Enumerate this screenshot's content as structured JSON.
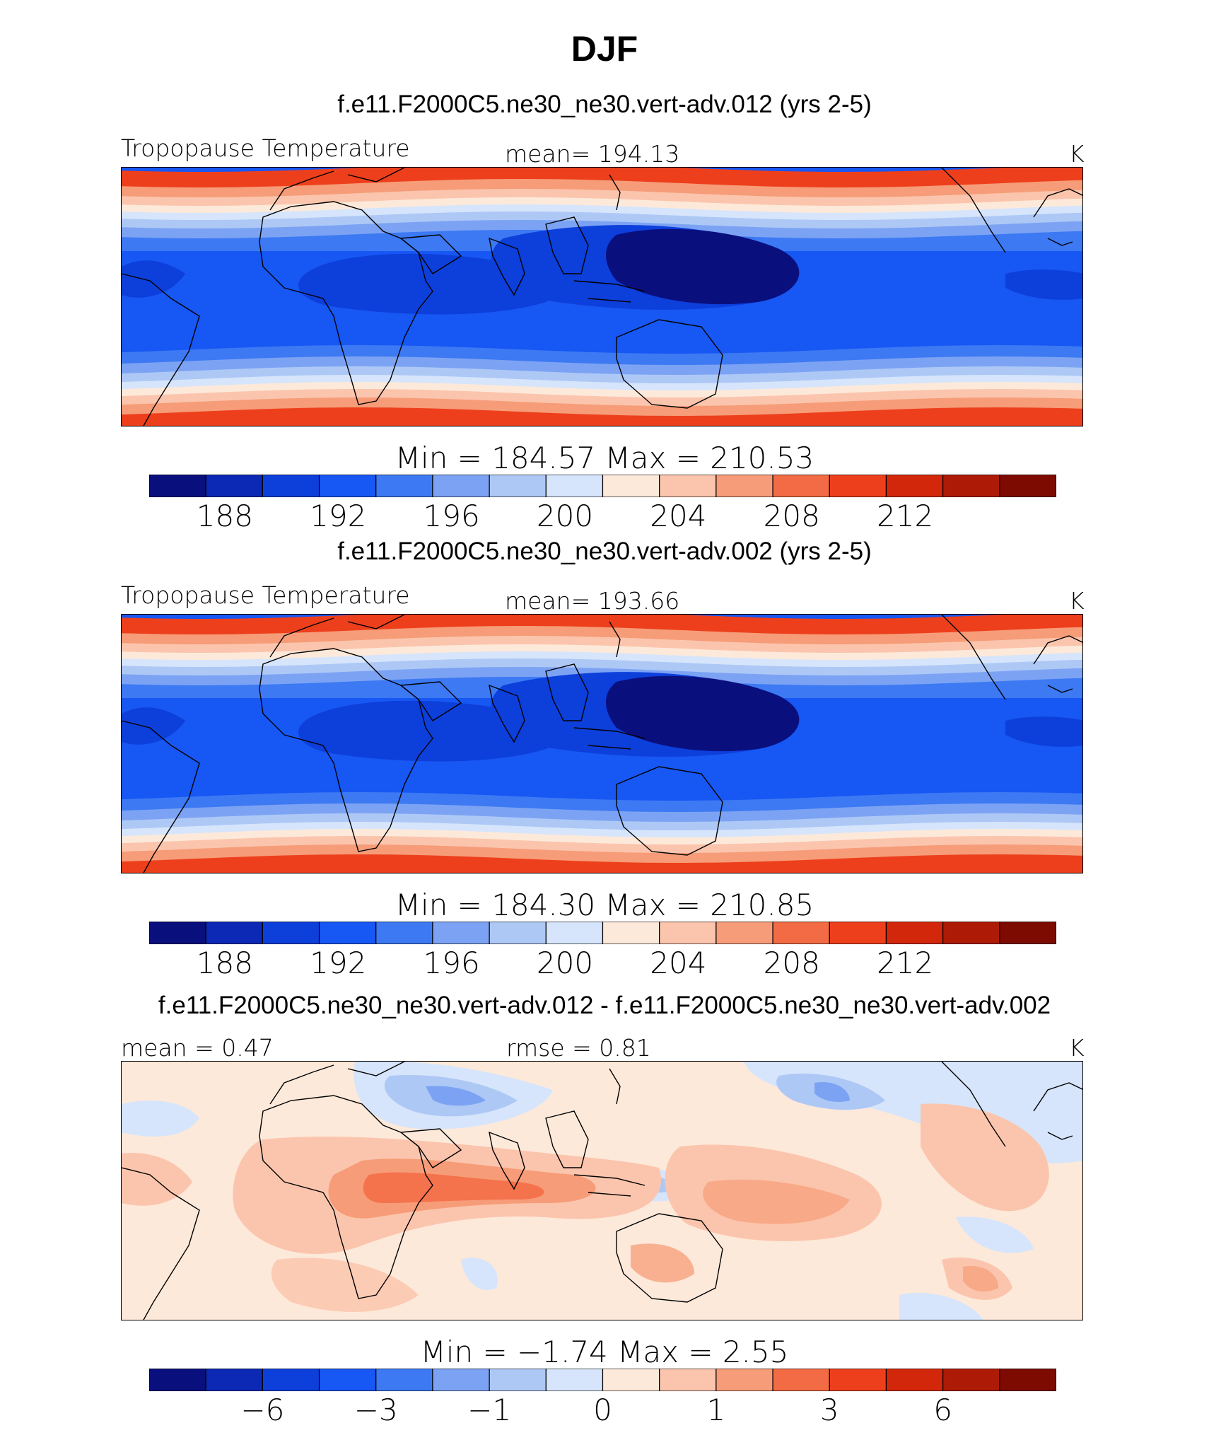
{
  "figure": {
    "season_title": "DJF",
    "units": "K"
  },
  "palette": [
    "#0a0f7e",
    "#0b29b4",
    "#0d3fdb",
    "#1757f3",
    "#3c79f3",
    "#7ca3f3",
    "#aec8f6",
    "#d6e5fb",
    "#fde9da",
    "#fbc5ad",
    "#f69c78",
    "#f36b44",
    "#ed3f1c",
    "#d3270b",
    "#ad1a06",
    "#7d0b02"
  ],
  "chart_data": [
    {
      "type": "heatmap",
      "panel": "top",
      "title": "f.e11.F2000C5.ne30_ne30.vert-adv.012 (yrs 2-5)",
      "field_label": "Tropopause Temperature",
      "mean_label": "mean=  194.13",
      "units": "K",
      "min_max_label": "Min  =  184.57  Max  =  210.53",
      "colorbar_levels": [
        186,
        188,
        190,
        192,
        194,
        196,
        198,
        200,
        202,
        204,
        206,
        208,
        210,
        212,
        214
      ],
      "colorbar_tick_labels": [
        "188",
        "192",
        "196",
        "200",
        "204",
        "208",
        "212"
      ],
      "colorbar_tick_levels": [
        188,
        192,
        196,
        200,
        204,
        208,
        212
      ],
      "min": 184.57,
      "max": 210.53,
      "mean": 194.13
    },
    {
      "type": "heatmap",
      "panel": "middle",
      "title": "f.e11.F2000C5.ne30_ne30.vert-adv.002 (yrs 2-5)",
      "field_label": "Tropopause Temperature",
      "mean_label": "mean=  193.66",
      "units": "K",
      "min_max_label": "Min  =  184.30  Max  =  210.85",
      "colorbar_levels": [
        186,
        188,
        190,
        192,
        194,
        196,
        198,
        200,
        202,
        204,
        206,
        208,
        210,
        212,
        214
      ],
      "colorbar_tick_labels": [
        "188",
        "192",
        "196",
        "200",
        "204",
        "208",
        "212"
      ],
      "colorbar_tick_levels": [
        188,
        192,
        196,
        200,
        204,
        208,
        212
      ],
      "min": 184.3,
      "max": 210.85,
      "mean": 193.66
    },
    {
      "type": "heatmap",
      "panel": "difference",
      "title": "f.e11.F2000C5.ne30_ne30.vert-adv.012 - f.e11.F2000C5.ne30_ne30.vert-adv.002",
      "mean_label": "mean =    0.47",
      "rmse_label": "rmse =    0.81",
      "units": "K",
      "min_max_label": "Min  =    −1.74  Max  =     2.55",
      "colorbar_tick_labels": [
        "−6",
        "−3",
        "−1",
        "0",
        "1",
        "3",
        "6"
      ],
      "min": -1.74,
      "max": 2.55,
      "mean": 0.47,
      "rmse": 0.81
    }
  ]
}
